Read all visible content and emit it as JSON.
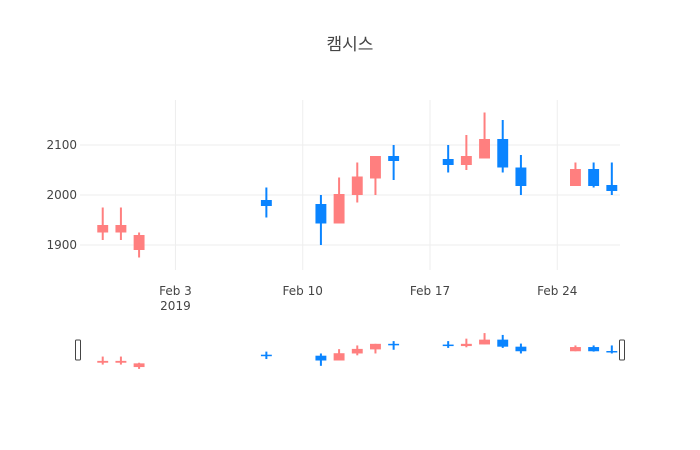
{
  "chart_data": {
    "type": "candlestick",
    "title": "캠시스",
    "x_ticks": [
      "Feb 3",
      "Feb 10",
      "Feb 17",
      "Feb 24"
    ],
    "x_tick_year": "2019",
    "y_ticks": [
      1900,
      2000,
      2100
    ],
    "x_range": [
      "2019-01-29",
      "2019-02-27"
    ],
    "ylim": [
      1850,
      2190
    ],
    "rangeslider": true,
    "colors": {
      "increasing": "#ff7f7f",
      "decreasing": "#0a84ff",
      "grid": "#eeeeee",
      "text": "#444444"
    },
    "candles": [
      {
        "date": "2019-01-30",
        "open": 1925,
        "high": 1975,
        "low": 1910,
        "close": 1940
      },
      {
        "date": "2019-01-31",
        "open": 1925,
        "high": 1975,
        "low": 1910,
        "close": 1940
      },
      {
        "date": "2019-02-01",
        "open": 1890,
        "high": 1925,
        "low": 1875,
        "close": 1920
      },
      {
        "date": "2019-02-08",
        "open": 1990,
        "high": 2015,
        "low": 1955,
        "close": 1978
      },
      {
        "date": "2019-02-11",
        "open": 1982,
        "high": 2000,
        "low": 1900,
        "close": 1943
      },
      {
        "date": "2019-02-12",
        "open": 1943,
        "high": 2035,
        "low": 1943,
        "close": 2002
      },
      {
        "date": "2019-02-13",
        "open": 2000,
        "high": 2065,
        "low": 1985,
        "close": 2037
      },
      {
        "date": "2019-02-14",
        "open": 2033,
        "high": 2078,
        "low": 2000,
        "close": 2078
      },
      {
        "date": "2019-02-15",
        "open": 2078,
        "high": 2100,
        "low": 2030,
        "close": 2068
      },
      {
        "date": "2019-02-18",
        "open": 2072,
        "high": 2100,
        "low": 2045,
        "close": 2060
      },
      {
        "date": "2019-02-19",
        "open": 2060,
        "high": 2120,
        "low": 2050,
        "close": 2078
      },
      {
        "date": "2019-02-20",
        "open": 2073,
        "high": 2165,
        "low": 2073,
        "close": 2112
      },
      {
        "date": "2019-02-21",
        "open": 2112,
        "high": 2150,
        "low": 2045,
        "close": 2055
      },
      {
        "date": "2019-02-22",
        "open": 2055,
        "high": 2080,
        "low": 2000,
        "close": 2018
      },
      {
        "date": "2019-02-25",
        "open": 2018,
        "high": 2065,
        "low": 2018,
        "close": 2052
      },
      {
        "date": "2019-02-26",
        "open": 2052,
        "high": 2065,
        "low": 2015,
        "close": 2018
      },
      {
        "date": "2019-02-27",
        "open": 2020,
        "high": 2065,
        "low": 2000,
        "close": 2008
      }
    ]
  }
}
